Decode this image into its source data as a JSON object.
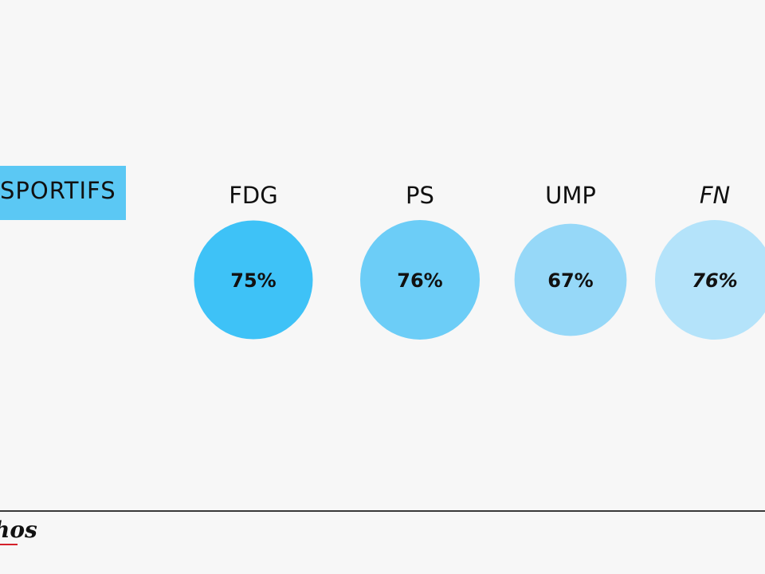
{
  "category_label": "SPORTIFS",
  "logo_text": "hos",
  "colors": {
    "background": "#f7f7f7",
    "tag": "#5bc8f4",
    "bubbles": [
      "#3ec2f7",
      "#6ccdf7",
      "#96d8f8",
      "#b4e3fa"
    ]
  },
  "chart_data": {
    "type": "bubble",
    "categories": [
      "FDG",
      "PS",
      "UMP",
      "FN"
    ],
    "values": [
      75,
      76,
      67,
      76
    ],
    "value_labels": [
      "75%",
      "76%",
      "67%",
      "76%"
    ],
    "unit": "%"
  }
}
